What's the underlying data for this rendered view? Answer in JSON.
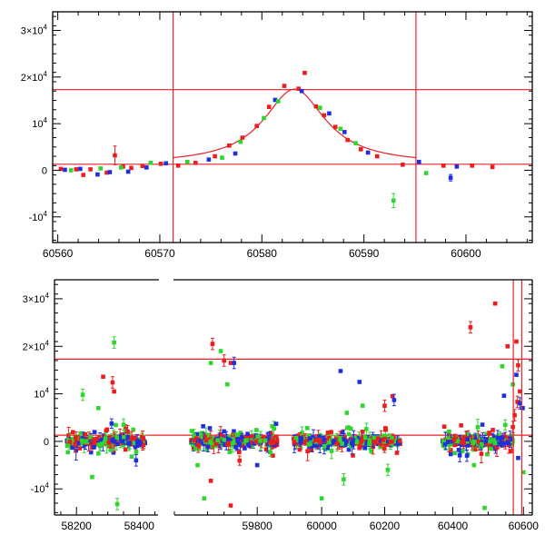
{
  "chart_data": [
    {
      "type": "scatter",
      "xlim": [
        60559.5,
        60606.5
      ],
      "ylim": [
        -15500,
        34000
      ],
      "xticks": [
        60560,
        60570,
        60580,
        60590,
        60600
      ],
      "xtick_labels": [
        "60560",
        "60570",
        "60580",
        "60590",
        "60600"
      ],
      "yticks": [
        30000,
        20000,
        10000,
        0,
        -10000
      ],
      "ytick_labels": [
        {
          "base": "3×10",
          "exp": "4"
        },
        {
          "base": "2×10",
          "exp": "4"
        },
        {
          "base": "10",
          "exp": "4"
        },
        {
          "base": "0",
          "exp": ""
        },
        {
          "base": "-10",
          "exp": "4"
        }
      ],
      "hlines": [
        17300,
        1300
      ],
      "vlines": [
        60571.3,
        60595.1
      ],
      "line_color": "#e8202a",
      "model_curve": {
        "baseline": 1300,
        "peak": 16100,
        "t0": 60583.2,
        "tau": 3.6
      },
      "series": [
        {
          "color": "#ee1c1c",
          "points": [
            [
              60560.3,
              300
            ],
            [
              60561.8,
              200
            ],
            [
              60562.5,
              -1000
            ],
            [
              60563.2,
              200
            ],
            [
              60564.8,
              -500
            ],
            [
              60565.6,
              3200
            ],
            [
              60566.4,
              800
            ],
            [
              60567.2,
              500
            ],
            [
              60568.3,
              900
            ],
            [
              60570.1,
              1400
            ],
            [
              60571.8,
              1000
            ],
            [
              60573.5,
              1600
            ],
            [
              60575.4,
              3000
            ],
            [
              60576.8,
              5300
            ],
            [
              60578.1,
              7000
            ],
            [
              60579.5,
              9500
            ],
            [
              60580.7,
              13600
            ],
            [
              60582.2,
              18100
            ],
            [
              60583.6,
              17500
            ],
            [
              60584.2,
              20900
            ],
            [
              60585.3,
              13700
            ],
            [
              60586.1,
              11800
            ],
            [
              60587.2,
              9300
            ],
            [
              60588.4,
              6500
            ],
            [
              60589.7,
              4500
            ],
            [
              60591.3,
              3000
            ],
            [
              60593.8,
              1200
            ],
            [
              60597.8,
              1000
            ],
            [
              60600.6,
              1000
            ],
            [
              60602.6,
              700
            ]
          ],
          "errs": [
            0,
            0,
            0,
            0,
            0,
            2000,
            0,
            0,
            0,
            0,
            0,
            0,
            0,
            0,
            0,
            0,
            0,
            0,
            0,
            0,
            0,
            0,
            0,
            0,
            0,
            0,
            0,
            0,
            0,
            0
          ]
        },
        {
          "color": "#1f2ee0",
          "points": [
            [
              60560.7,
              100
            ],
            [
              60562.2,
              300
            ],
            [
              60563.9,
              -900
            ],
            [
              60565.1,
              -400
            ],
            [
              60566.9,
              -300
            ],
            [
              60568.7,
              600
            ],
            [
              60570.6,
              1500
            ],
            [
              60574.8,
              2300
            ],
            [
              60577.4,
              3600
            ],
            [
              60581.3,
              15100
            ],
            [
              60583.9,
              17000
            ],
            [
              60586.6,
              12200
            ],
            [
              60588.1,
              8200
            ],
            [
              60590.4,
              3800
            ],
            [
              60595.4,
              1800
            ],
            [
              60598.5,
              -1600
            ],
            [
              60599.1,
              800
            ]
          ],
          "errs": [
            0,
            0,
            0,
            0,
            0,
            0,
            0,
            0,
            0,
            0,
            0,
            0,
            0,
            0,
            0,
            700,
            0
          ]
        },
        {
          "color": "#2ed62e",
          "points": [
            [
              60561.3,
              0
            ],
            [
              60564.2,
              400
            ],
            [
              60566.2,
              600
            ],
            [
              60569.1,
              1600
            ],
            [
              60572.7,
              1800
            ],
            [
              60576.1,
              2700
            ],
            [
              60577.9,
              6100
            ],
            [
              60580.2,
              11200
            ],
            [
              60581.6,
              14800
            ],
            [
              60585.7,
              13400
            ],
            [
              60587.7,
              8900
            ],
            [
              60589.2,
              5800
            ],
            [
              60592.9,
              -6500
            ],
            [
              60596.1,
              -600
            ]
          ],
          "errs": [
            0,
            0,
            0,
            0,
            0,
            0,
            0,
            0,
            0,
            0,
            0,
            0,
            1500,
            0
          ]
        }
      ]
    },
    {
      "type": "scatter",
      "segments": [
        {
          "xlim": [
            58130,
            58460
          ],
          "xticks": [
            58200,
            58400
          ],
          "xtick_labels": [
            "58200",
            "58400"
          ]
        },
        {
          "xlim": [
            59550,
            59890
          ],
          "xticks": [
            59800
          ],
          "xtick_labels": [
            "59800"
          ]
        },
        {
          "xlim": [
            59890,
            60265
          ],
          "xticks": [
            60000,
            60200
          ],
          "xtick_labels": [
            "60000",
            "60200"
          ]
        },
        {
          "xlim": [
            60265,
            60625
          ],
          "xticks": [
            60400,
            60600
          ],
          "xtick_labels": [
            "60400",
            "60600"
          ]
        }
      ],
      "xticks": [
        58200,
        58400,
        59800,
        60000,
        60200,
        60400,
        60600
      ],
      "xtick_labels": [
        "58200",
        "58400",
        "59800",
        "60000",
        "60200",
        "60400",
        "60600"
      ],
      "ylim": [
        -15500,
        34000
      ],
      "yticks": [
        30000,
        20000,
        10000,
        0,
        -10000
      ],
      "ytick_labels": [
        {
          "base": "3×10",
          "exp": "4"
        },
        {
          "base": "2×10",
          "exp": "4"
        },
        {
          "base": "10",
          "exp": "4"
        },
        {
          "base": "0",
          "exp": ""
        },
        {
          "base": "-10",
          "exp": "4"
        }
      ],
      "hlines": [
        17300,
        1300
      ],
      "vlines": [
        60571.3,
        60595.1
      ],
      "line_color": "#e8202a",
      "clusters": [
        {
          "x0": 58170,
          "x1": 58420,
          "n": 120
        },
        {
          "x0": 59600,
          "x1": 59860,
          "n": 130
        },
        {
          "x0": 59910,
          "x1": 60250,
          "n": 150
        },
        {
          "x0": 60370,
          "x1": 60570,
          "n": 110
        }
      ],
      "series": [
        {
          "color": "#ee1c1c",
          "highlight_points": [
            [
              58285,
              13600
            ],
            [
              58315,
              12400
            ],
            [
              58320,
              10500
            ],
            [
              59665,
              20500
            ],
            [
              59700,
              17000
            ],
            [
              59720,
              16500
            ],
            [
              59660,
              -8300
            ],
            [
              59720,
              -13500
            ],
            [
              60130,
              2000
            ],
            [
              60200,
              7500
            ],
            [
              60225,
              9500
            ],
            [
              60450,
              24000
            ],
            [
              60520,
              29000
            ],
            [
              60555,
              20000
            ],
            [
              60580,
              21000
            ],
            [
              60585,
              16000
            ],
            [
              60590,
              10500
            ],
            [
              60583,
              8300
            ],
            [
              60575,
              5500
            ],
            [
              60570,
              3000
            ]
          ]
        },
        {
          "color": "#1f2ee0",
          "highlight_points": [
            [
              58390,
              -4000
            ],
            [
              59730,
              16500
            ],
            [
              59800,
              -5000
            ],
            [
              60060,
              14800
            ],
            [
              60120,
              12500
            ],
            [
              60230,
              8700
            ],
            [
              60545,
              9600
            ],
            [
              60580,
              14000
            ],
            [
              60590,
              8000
            ],
            [
              60598,
              7000
            ],
            [
              60585,
              -3500
            ],
            [
              60440,
              -3000
            ]
          ]
        },
        {
          "color": "#2ed62e",
          "highlight_points": [
            [
              58220,
              9800
            ],
            [
              58270,
              7000
            ],
            [
              58320,
              20800
            ],
            [
              58330,
              -13200
            ],
            [
              58250,
              -7500
            ],
            [
              58350,
              3500
            ],
            [
              59660,
              16500
            ],
            [
              59690,
              19000
            ],
            [
              59710,
              12000
            ],
            [
              59620,
              -5000
            ],
            [
              59640,
              -12000
            ],
            [
              60000,
              -12000
            ],
            [
              60070,
              -8000
            ],
            [
              60080,
              6000
            ],
            [
              60130,
              7500
            ],
            [
              60540,
              15800
            ],
            [
              60570,
              12000
            ],
            [
              60490,
              -14000
            ],
            [
              60460,
              -5000
            ],
            [
              60600,
              -6500
            ],
            [
              60210,
              -6000
            ]
          ]
        }
      ]
    }
  ]
}
